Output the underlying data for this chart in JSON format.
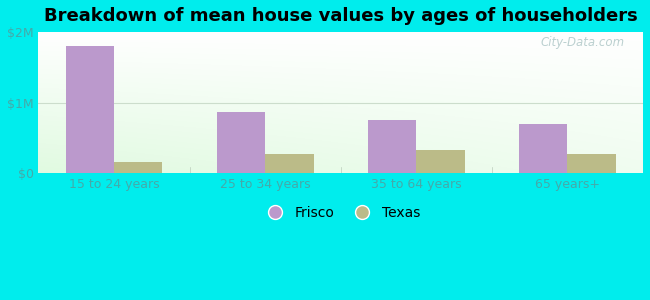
{
  "title": "Breakdown of mean house values by ages of householders",
  "categories": [
    "15 to 24 years",
    "25 to 34 years",
    "35 to 64 years",
    "65 years+"
  ],
  "frisco_values": [
    1800000,
    870000,
    750000,
    700000
  ],
  "texas_values": [
    160000,
    270000,
    330000,
    270000
  ],
  "frisco_color": "#bb99cc",
  "texas_color": "#bbbb88",
  "ylim": [
    0,
    2000000
  ],
  "yticks": [
    0,
    1000000,
    2000000
  ],
  "ytick_labels": [
    "$0",
    "$1M",
    "$2M"
  ],
  "background_color": "#00eded",
  "watermark": "City-Data.com",
  "legend_labels": [
    "Frisco",
    "Texas"
  ],
  "bar_width": 0.32,
  "title_fontsize": 13,
  "tick_fontsize": 9,
  "legend_fontsize": 10,
  "grad_colors": [
    "#e0f0e0",
    "#f5fff5",
    "#eefcee",
    "#ffffff"
  ],
  "tick_color": "#44aaaa",
  "watermark_color": "#b0c8c8"
}
